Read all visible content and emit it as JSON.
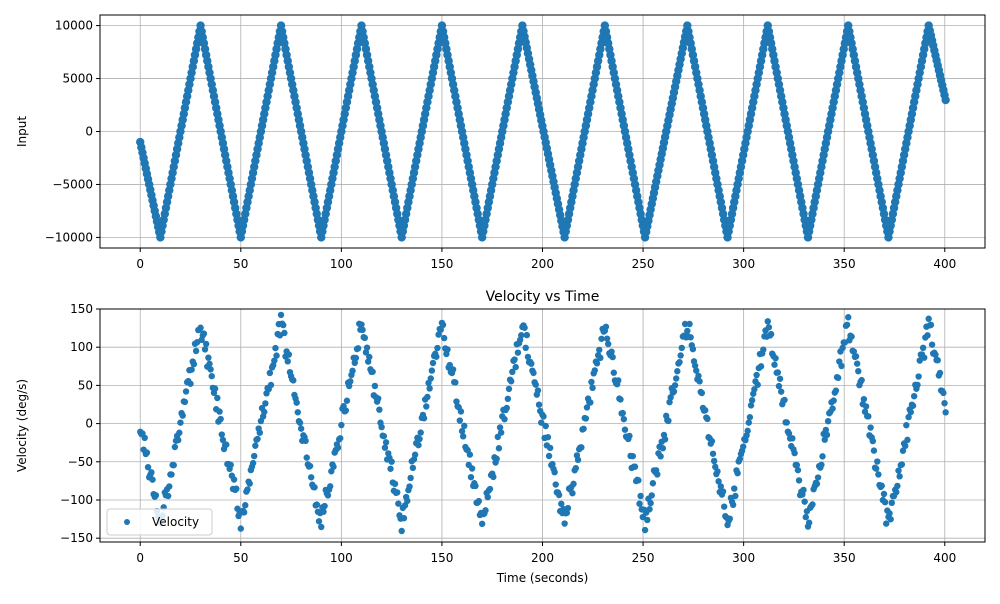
{
  "colors": {
    "series": "#1f77b4",
    "grid": "#b0b0b0",
    "frame": "#000000"
  },
  "chart_data": [
    {
      "type": "scatter",
      "title": "",
      "xlabel": "",
      "ylabel": "Input",
      "xlim": [
        -20,
        420
      ],
      "ylim": [
        -11000,
        11000
      ],
      "xticks": [
        0,
        50,
        100,
        150,
        200,
        250,
        300,
        350,
        400
      ],
      "xtick_labels": [
        "0",
        "50",
        "100",
        "150",
        "200",
        "250",
        "300",
        "350",
        "400"
      ],
      "yticks": [
        -10000,
        -5000,
        0,
        5000,
        10000
      ],
      "ytick_labels": [
        "−10000",
        "−5000",
        "0",
        "5000",
        "10000"
      ],
      "grid": true,
      "legend": null,
      "series": [
        {
          "name": "",
          "pattern": "triangle wave",
          "x": [
            0,
            10,
            30,
            50,
            70,
            90,
            110,
            130,
            150,
            170,
            190,
            211,
            231,
            251,
            272,
            292,
            312,
            332,
            352,
            372,
            392,
            401
          ],
          "y": [
            -1000,
            -10000,
            10000,
            -10000,
            10000,
            -10000,
            10000,
            -10000,
            10000,
            -10000,
            10000,
            -10000,
            10000,
            -10000,
            10000,
            -10000,
            10000,
            -10000,
            10000,
            -10000,
            10000,
            2500
          ]
        }
      ]
    },
    {
      "type": "scatter",
      "title": "Velocity vs Time",
      "xlabel": "Time (seconds)",
      "ylabel": "Velocity (deg/s)",
      "xlim": [
        -20,
        420
      ],
      "ylim": [
        -155,
        150
      ],
      "xticks": [
        0,
        50,
        100,
        150,
        200,
        250,
        300,
        350,
        400
      ],
      "xtick_labels": [
        "0",
        "50",
        "100",
        "150",
        "200",
        "250",
        "300",
        "350",
        "400"
      ],
      "yticks": [
        -150,
        -100,
        -50,
        0,
        50,
        100,
        150
      ],
      "ytick_labels": [
        "−150",
        "−100",
        "−50",
        "0",
        "50",
        "100",
        "150"
      ],
      "grid": true,
      "legend": {
        "position": "lower-left",
        "entries": [
          "Velocity"
        ]
      },
      "series": [
        {
          "name": "Velocity",
          "pattern": "noisy triangle wave, period ~40 s, peaks ~130, troughs ~-130",
          "x": [
            0,
            10,
            30,
            50,
            70,
            90,
            110,
            130,
            150,
            170,
            190,
            211,
            231,
            251,
            272,
            292,
            312,
            332,
            352,
            372,
            392,
            401
          ],
          "y": [
            0,
            -130,
            130,
            -130,
            130,
            -130,
            130,
            -130,
            130,
            -130,
            130,
            -130,
            130,
            -130,
            130,
            -130,
            130,
            -130,
            130,
            -130,
            130,
            13
          ]
        }
      ]
    }
  ]
}
